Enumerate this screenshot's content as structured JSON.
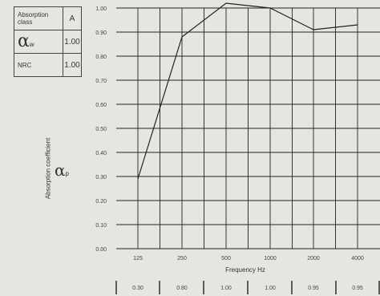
{
  "table": {
    "row1_label": "Absorption class",
    "row1_value": "A",
    "row2_symbol": "α",
    "row2_sub": "w",
    "row2_value": "1.00",
    "row3_label": "NRC",
    "row3_value": "1.00"
  },
  "ylabel_side": "Absorption coefficient",
  "alpha_p": {
    "symbol": "α",
    "sub": "p"
  },
  "chart_data": {
    "type": "line",
    "x_categories": [
      "125",
      "250",
      "500",
      "1000",
      "2000",
      "4000"
    ],
    "series": [
      {
        "values": [
          0.29,
          0.88,
          1.02,
          1.0,
          0.91,
          0.93
        ]
      }
    ],
    "practical_values": [
      "0.30",
      "0.80",
      "1.00",
      "1.00",
      "0.95",
      "0.95"
    ],
    "xlabel": "Frequency Hz",
    "ylabel": "",
    "ylim": [
      0,
      1
    ],
    "yticks": [
      "0.00",
      "0.10",
      "0.20",
      "0.30",
      "0.40",
      "0.50",
      "0.60",
      "0.70",
      "0.80",
      "0.90",
      "1.00"
    ],
    "grid": true
  }
}
